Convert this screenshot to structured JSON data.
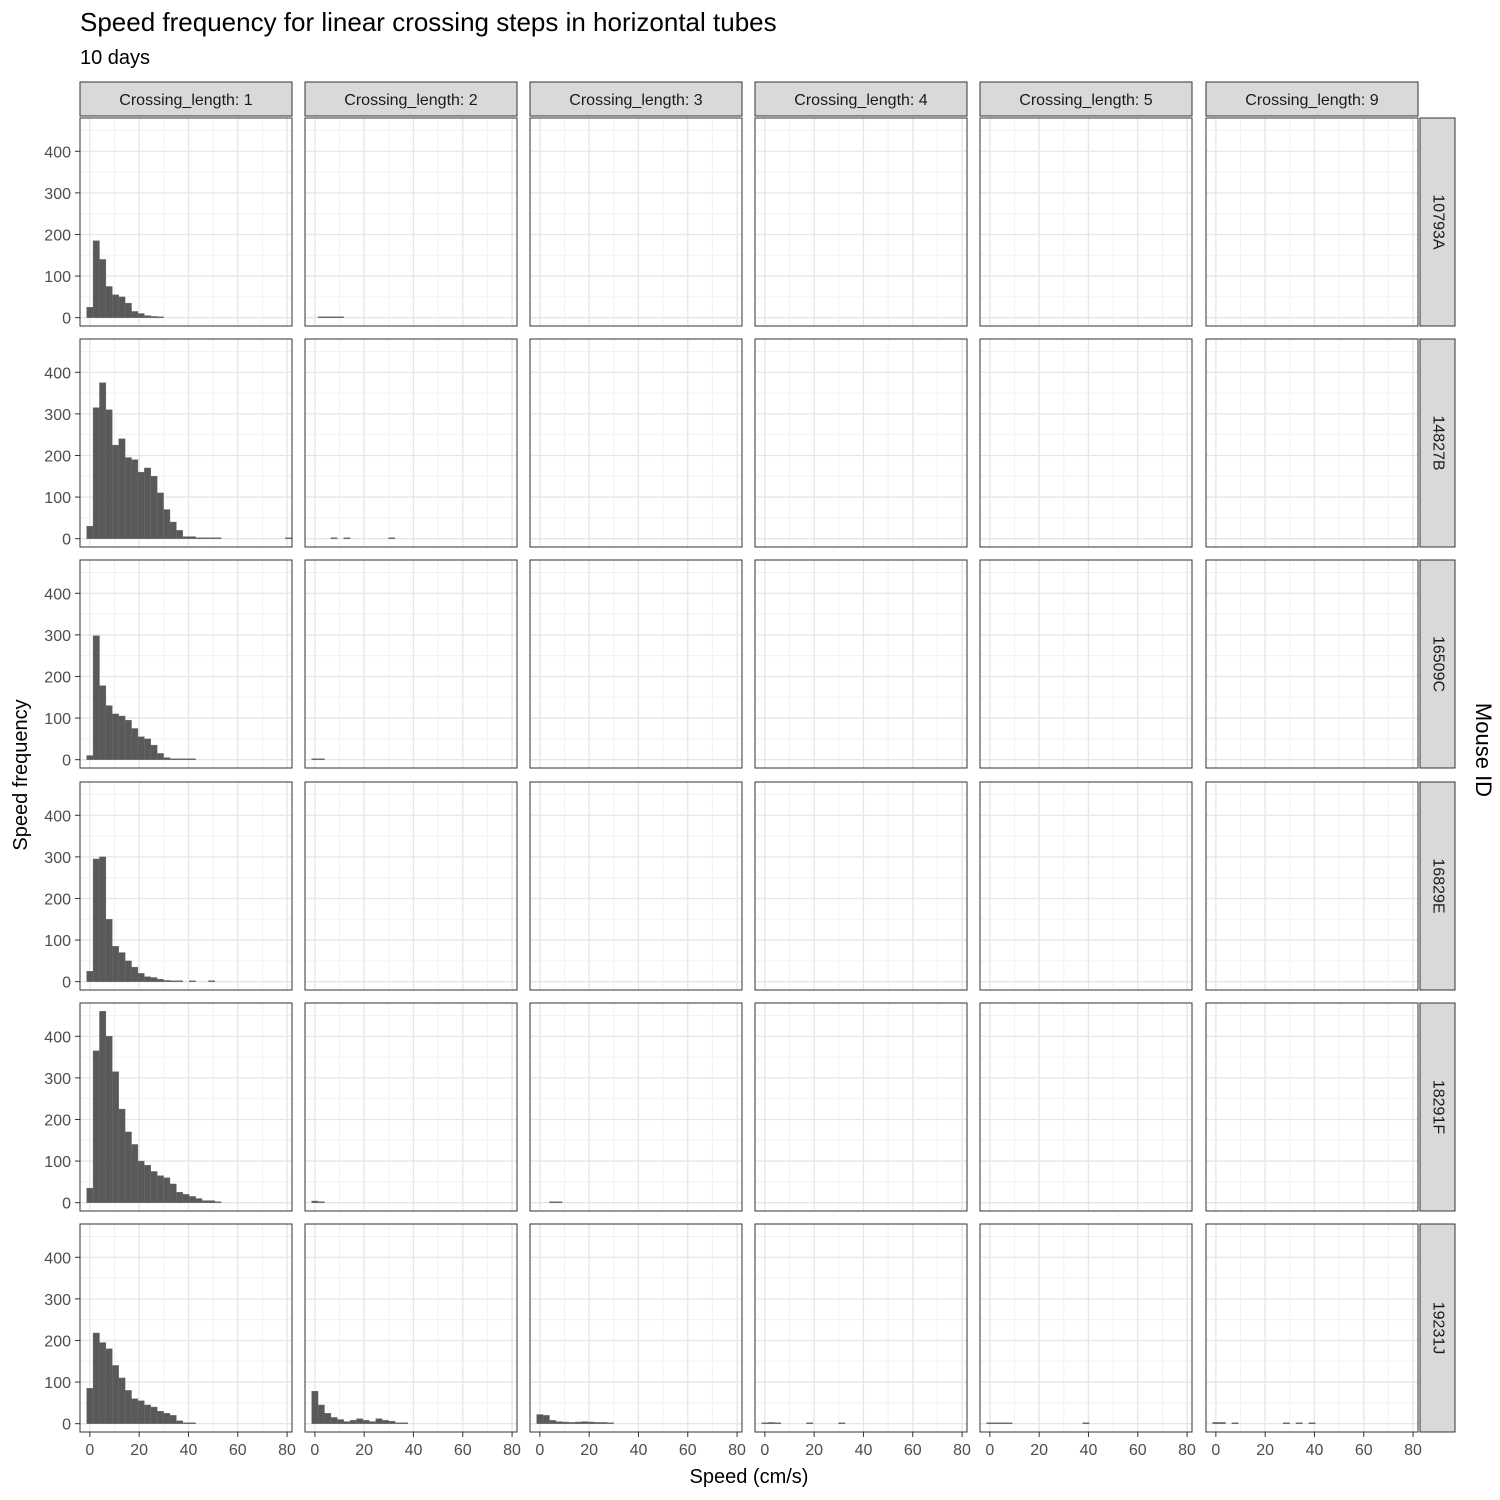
{
  "chart_data": {
    "type": "bar",
    "title": "Speed frequency for linear crossing steps in horizontal tubes",
    "subtitle": "10  days",
    "xlabel": "Speed (cm/s)",
    "ylabel": "Speed frequency",
    "facet_row_title": "Mouse ID",
    "col_labels": [
      "Crossing_length: 1",
      "Crossing_length: 2",
      "Crossing_length: 3",
      "Crossing_length: 4",
      "Crossing_length: 5",
      "Crossing_length: 9"
    ],
    "row_labels": [
      "10793A",
      "14827B",
      "16509C",
      "16829E",
      "18291F",
      "19231J"
    ],
    "x_ticks": [
      0,
      20,
      40,
      60,
      80
    ],
    "y_ticks": [
      0,
      100,
      200,
      300,
      400
    ],
    "xlim": [
      -4,
      82
    ],
    "ylim": [
      -20,
      480
    ],
    "bin_width": 2.6,
    "bin_start": -1.3,
    "grid": true,
    "bar_color": "#595959",
    "strip_fill": "#d9d9d9",
    "panels": [
      [
        [
          25,
          185,
          140,
          75,
          55,
          50,
          35,
          15,
          10,
          5,
          3,
          2
        ],
        [
          0,
          1,
          1,
          1,
          1
        ],
        [],
        [],
        [],
        []
      ],
      [
        [
          30,
          315,
          375,
          310,
          225,
          240,
          195,
          190,
          160,
          170,
          150,
          110,
          70,
          40,
          20,
          5,
          5,
          2,
          1,
          1,
          1,
          0,
          0,
          0,
          0,
          0,
          0,
          0,
          0,
          0,
          0,
          1
        ],
        [
          0,
          0,
          0,
          2,
          0,
          2,
          0,
          0,
          0,
          0,
          0,
          0,
          1
        ],
        [],
        [],
        [],
        []
      ],
      [
        [
          10,
          298,
          178,
          130,
          110,
          105,
          95,
          75,
          55,
          50,
          35,
          15,
          5,
          2,
          2,
          1,
          1
        ],
        [
          2,
          1
        ],
        [],
        [],
        [],
        []
      ],
      [
        [
          25,
          295,
          300,
          150,
          85,
          70,
          50,
          35,
          20,
          12,
          10,
          6,
          3,
          2,
          2,
          0,
          1,
          0,
          0,
          1
        ],
        [],
        [],
        [],
        [],
        []
      ],
      [
        [
          35,
          365,
          460,
          400,
          315,
          225,
          170,
          140,
          100,
          90,
          75,
          65,
          60,
          45,
          25,
          20,
          15,
          10,
          5,
          5,
          2
        ],
        [
          4,
          2
        ],
        [
          0,
          0,
          1,
          1
        ],
        [],
        [],
        []
      ],
      [
        [
          85,
          218,
          195,
          180,
          140,
          110,
          80,
          60,
          55,
          45,
          40,
          30,
          25,
          20,
          7,
          1,
          1
        ],
        [
          78,
          45,
          25,
          15,
          10,
          5,
          8,
          12,
          8,
          5,
          12,
          8,
          6,
          2,
          1
        ],
        [
          22,
          20,
          8,
          5,
          4,
          3,
          4,
          5,
          4,
          3,
          3,
          2
        ],
        [
          2,
          3,
          1,
          0,
          0,
          0,
          0,
          1,
          0,
          0,
          0,
          0,
          1
        ],
        [
          1,
          1,
          1,
          2,
          0,
          0,
          0,
          0,
          0,
          0,
          0,
          0,
          0,
          0,
          0,
          1
        ],
        [
          3,
          3,
          0,
          1,
          0,
          0,
          0,
          0,
          0,
          0,
          0,
          1,
          0,
          1,
          0,
          1
        ]
      ]
    ]
  }
}
